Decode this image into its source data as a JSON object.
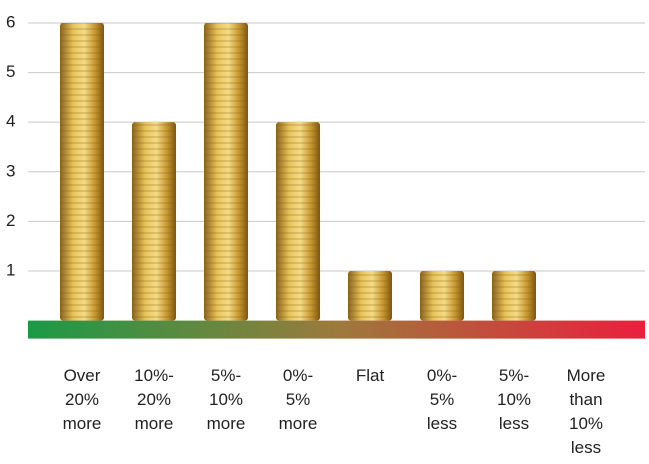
{
  "chart_data": {
    "type": "bar",
    "categories": [
      "Over\n20%\nmore",
      "10%-\n20%\nmore",
      "5%-\n10%\nmore",
      "0%-\n5%\nmore",
      "Flat",
      "0%-\n5%\nless",
      "5%-\n10%\nless",
      "More\nthan\n10%\nless"
    ],
    "values": [
      6,
      4,
      6,
      4,
      1,
      1,
      1,
      0
    ],
    "color": "#d4a53a",
    "ylim": [
      0,
      6.3
    ],
    "yticks": [
      1,
      2,
      3,
      4,
      5,
      6
    ],
    "grid": true,
    "colorbar": [
      "#1a9a46",
      "#9c7a3c",
      "#ea1f3d"
    ]
  }
}
